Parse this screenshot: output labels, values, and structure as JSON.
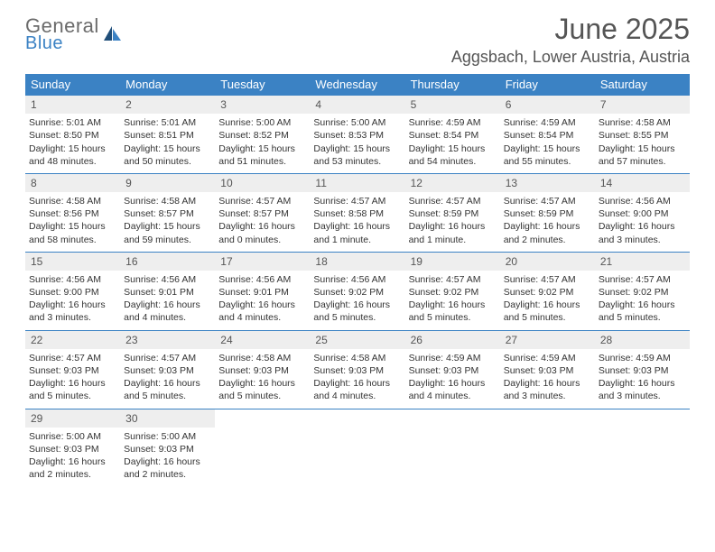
{
  "brand": {
    "general": "General",
    "blue": "Blue"
  },
  "title": {
    "month": "June 2025",
    "location": "Aggsbach, Lower Austria, Austria"
  },
  "colors": {
    "accent": "#3b82c4",
    "header_text": "#555555",
    "body_text": "#333333",
    "daynum_bg": "#eeeeee",
    "background": "#ffffff"
  },
  "weekdays": [
    "Sunday",
    "Monday",
    "Tuesday",
    "Wednesday",
    "Thursday",
    "Friday",
    "Saturday"
  ],
  "weeks": [
    {
      "nums": [
        "1",
        "2",
        "3",
        "4",
        "5",
        "6",
        "7"
      ],
      "cells": [
        {
          "sunrise": "Sunrise: 5:01 AM",
          "sunset": "Sunset: 8:50 PM",
          "day1": "Daylight: 15 hours",
          "day2": "and 48 minutes."
        },
        {
          "sunrise": "Sunrise: 5:01 AM",
          "sunset": "Sunset: 8:51 PM",
          "day1": "Daylight: 15 hours",
          "day2": "and 50 minutes."
        },
        {
          "sunrise": "Sunrise: 5:00 AM",
          "sunset": "Sunset: 8:52 PM",
          "day1": "Daylight: 15 hours",
          "day2": "and 51 minutes."
        },
        {
          "sunrise": "Sunrise: 5:00 AM",
          "sunset": "Sunset: 8:53 PM",
          "day1": "Daylight: 15 hours",
          "day2": "and 53 minutes."
        },
        {
          "sunrise": "Sunrise: 4:59 AM",
          "sunset": "Sunset: 8:54 PM",
          "day1": "Daylight: 15 hours",
          "day2": "and 54 minutes."
        },
        {
          "sunrise": "Sunrise: 4:59 AM",
          "sunset": "Sunset: 8:54 PM",
          "day1": "Daylight: 15 hours",
          "day2": "and 55 minutes."
        },
        {
          "sunrise": "Sunrise: 4:58 AM",
          "sunset": "Sunset: 8:55 PM",
          "day1": "Daylight: 15 hours",
          "day2": "and 57 minutes."
        }
      ]
    },
    {
      "nums": [
        "8",
        "9",
        "10",
        "11",
        "12",
        "13",
        "14"
      ],
      "cells": [
        {
          "sunrise": "Sunrise: 4:58 AM",
          "sunset": "Sunset: 8:56 PM",
          "day1": "Daylight: 15 hours",
          "day2": "and 58 minutes."
        },
        {
          "sunrise": "Sunrise: 4:58 AM",
          "sunset": "Sunset: 8:57 PM",
          "day1": "Daylight: 15 hours",
          "day2": "and 59 minutes."
        },
        {
          "sunrise": "Sunrise: 4:57 AM",
          "sunset": "Sunset: 8:57 PM",
          "day1": "Daylight: 16 hours",
          "day2": "and 0 minutes."
        },
        {
          "sunrise": "Sunrise: 4:57 AM",
          "sunset": "Sunset: 8:58 PM",
          "day1": "Daylight: 16 hours",
          "day2": "and 1 minute."
        },
        {
          "sunrise": "Sunrise: 4:57 AM",
          "sunset": "Sunset: 8:59 PM",
          "day1": "Daylight: 16 hours",
          "day2": "and 1 minute."
        },
        {
          "sunrise": "Sunrise: 4:57 AM",
          "sunset": "Sunset: 8:59 PM",
          "day1": "Daylight: 16 hours",
          "day2": "and 2 minutes."
        },
        {
          "sunrise": "Sunrise: 4:56 AM",
          "sunset": "Sunset: 9:00 PM",
          "day1": "Daylight: 16 hours",
          "day2": "and 3 minutes."
        }
      ]
    },
    {
      "nums": [
        "15",
        "16",
        "17",
        "18",
        "19",
        "20",
        "21"
      ],
      "cells": [
        {
          "sunrise": "Sunrise: 4:56 AM",
          "sunset": "Sunset: 9:00 PM",
          "day1": "Daylight: 16 hours",
          "day2": "and 3 minutes."
        },
        {
          "sunrise": "Sunrise: 4:56 AM",
          "sunset": "Sunset: 9:01 PM",
          "day1": "Daylight: 16 hours",
          "day2": "and 4 minutes."
        },
        {
          "sunrise": "Sunrise: 4:56 AM",
          "sunset": "Sunset: 9:01 PM",
          "day1": "Daylight: 16 hours",
          "day2": "and 4 minutes."
        },
        {
          "sunrise": "Sunrise: 4:56 AM",
          "sunset": "Sunset: 9:02 PM",
          "day1": "Daylight: 16 hours",
          "day2": "and 5 minutes."
        },
        {
          "sunrise": "Sunrise: 4:57 AM",
          "sunset": "Sunset: 9:02 PM",
          "day1": "Daylight: 16 hours",
          "day2": "and 5 minutes."
        },
        {
          "sunrise": "Sunrise: 4:57 AM",
          "sunset": "Sunset: 9:02 PM",
          "day1": "Daylight: 16 hours",
          "day2": "and 5 minutes."
        },
        {
          "sunrise": "Sunrise: 4:57 AM",
          "sunset": "Sunset: 9:02 PM",
          "day1": "Daylight: 16 hours",
          "day2": "and 5 minutes."
        }
      ]
    },
    {
      "nums": [
        "22",
        "23",
        "24",
        "25",
        "26",
        "27",
        "28"
      ],
      "cells": [
        {
          "sunrise": "Sunrise: 4:57 AM",
          "sunset": "Sunset: 9:03 PM",
          "day1": "Daylight: 16 hours",
          "day2": "and 5 minutes."
        },
        {
          "sunrise": "Sunrise: 4:57 AM",
          "sunset": "Sunset: 9:03 PM",
          "day1": "Daylight: 16 hours",
          "day2": "and 5 minutes."
        },
        {
          "sunrise": "Sunrise: 4:58 AM",
          "sunset": "Sunset: 9:03 PM",
          "day1": "Daylight: 16 hours",
          "day2": "and 5 minutes."
        },
        {
          "sunrise": "Sunrise: 4:58 AM",
          "sunset": "Sunset: 9:03 PM",
          "day1": "Daylight: 16 hours",
          "day2": "and 4 minutes."
        },
        {
          "sunrise": "Sunrise: 4:59 AM",
          "sunset": "Sunset: 9:03 PM",
          "day1": "Daylight: 16 hours",
          "day2": "and 4 minutes."
        },
        {
          "sunrise": "Sunrise: 4:59 AM",
          "sunset": "Sunset: 9:03 PM",
          "day1": "Daylight: 16 hours",
          "day2": "and 3 minutes."
        },
        {
          "sunrise": "Sunrise: 4:59 AM",
          "sunset": "Sunset: 9:03 PM",
          "day1": "Daylight: 16 hours",
          "day2": "and 3 minutes."
        }
      ]
    },
    {
      "nums": [
        "29",
        "30",
        "",
        "",
        "",
        "",
        ""
      ],
      "cells": [
        {
          "sunrise": "Sunrise: 5:00 AM",
          "sunset": "Sunset: 9:03 PM",
          "day1": "Daylight: 16 hours",
          "day2": "and 2 minutes."
        },
        {
          "sunrise": "Sunrise: 5:00 AM",
          "sunset": "Sunset: 9:03 PM",
          "day1": "Daylight: 16 hours",
          "day2": "and 2 minutes."
        },
        {
          "sunrise": "",
          "sunset": "",
          "day1": "",
          "day2": ""
        },
        {
          "sunrise": "",
          "sunset": "",
          "day1": "",
          "day2": ""
        },
        {
          "sunrise": "",
          "sunset": "",
          "day1": "",
          "day2": ""
        },
        {
          "sunrise": "",
          "sunset": "",
          "day1": "",
          "day2": ""
        },
        {
          "sunrise": "",
          "sunset": "",
          "day1": "",
          "day2": ""
        }
      ]
    }
  ]
}
